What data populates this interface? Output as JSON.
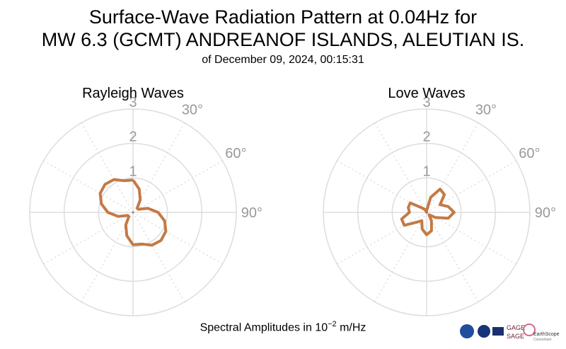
{
  "title_line1": "Surface-Wave Radiation Pattern at 0.04Hz for",
  "title_line2": "MW 6.3 (GCMT) ANDREANOF ISLANDS, ALEUTIAN IS.",
  "title_line3": "of December 09, 2024, 00:15:31",
  "footer_prefix": "Spectral Amplitudes in 10",
  "footer_exp": "−2",
  "footer_suffix": " m/Hz",
  "logo_texts": {
    "gage": "GAGE",
    "sage": "SAGE",
    "earthscope": "EarthScope",
    "consortium": "Consortium"
  },
  "colors": {
    "pattern": "#c47a45",
    "grid": "#dddddd",
    "tick_label": "#999999"
  },
  "chart_data": [
    {
      "type": "polar-line",
      "title": "Rayleigh Waves",
      "r_ticks": [
        "1",
        "2",
        "3"
      ],
      "r_max": 3,
      "theta_tick_labels": [
        "30°",
        "60°",
        "90°"
      ],
      "theta_gridlines_deg": [
        0,
        30,
        60,
        90,
        120,
        150,
        180,
        210,
        240,
        270,
        300,
        330
      ],
      "series": [
        {
          "azimuth_deg": [
            0,
            15,
            30,
            45,
            60,
            75,
            90,
            105,
            120,
            135,
            150,
            165,
            180,
            195,
            210,
            225,
            240,
            255,
            270,
            285,
            300,
            315,
            330,
            345,
            360
          ],
          "amplitude": [
            0.94,
            0.7,
            0.42,
            0.17,
            0.18,
            0.45,
            0.73,
            0.95,
            1.1,
            1.15,
            1.1,
            0.95,
            0.94,
            0.7,
            0.42,
            0.17,
            0.18,
            0.45,
            0.73,
            0.95,
            1.1,
            1.15,
            1.1,
            0.95,
            0.94
          ]
        }
      ]
    },
    {
      "type": "polar-line",
      "title": "Love Waves",
      "r_ticks": [
        "1",
        "2",
        "3"
      ],
      "r_max": 3,
      "theta_tick_labels": [
        "30°",
        "60°",
        "90°"
      ],
      "theta_gridlines_deg": [
        0,
        30,
        60,
        90,
        120,
        150,
        180,
        210,
        240,
        270,
        300,
        330
      ],
      "series": [
        {
          "azimuth_deg": [
            0,
            15,
            30,
            45,
            60,
            75,
            90,
            105,
            120,
            135,
            150,
            165,
            180,
            195,
            210,
            225,
            240,
            255,
            270,
            285,
            300,
            315,
            330,
            345,
            360
          ],
          "amplitude": [
            0.05,
            0.45,
            0.78,
            0.73,
            0.45,
            0.65,
            0.8,
            0.65,
            0.3,
            0.1,
            0.28,
            0.55,
            0.65,
            0.5,
            0.28,
            0.4,
            0.75,
            0.75,
            0.5,
            0.55,
            0.55,
            0.18,
            0.1,
            0.0,
            0.05
          ]
        }
      ]
    }
  ]
}
